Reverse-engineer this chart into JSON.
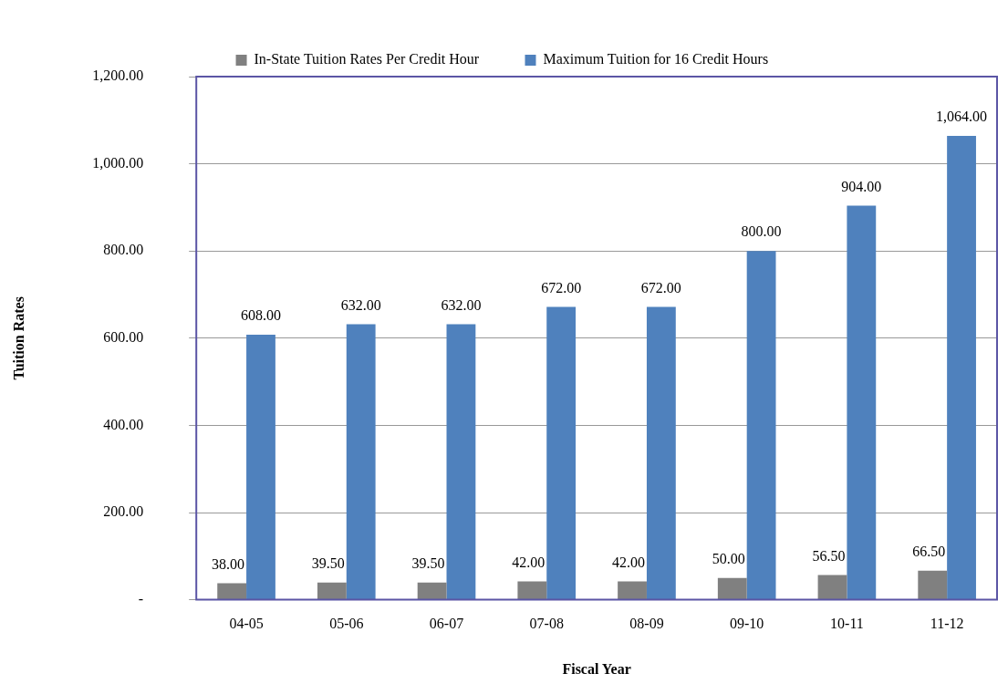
{
  "chart_data": {
    "type": "bar",
    "xlabel": "Fiscal Year",
    "ylabel": "Tuition Rates",
    "categories": [
      "04-05",
      "05-06",
      "06-07",
      "07-08",
      "08-09",
      "09-10",
      "10-11",
      "11-12"
    ],
    "series": [
      {
        "name": "In-State Tuition Rates Per Credit Hour",
        "color": "#808080",
        "values": [
          38,
          39.5,
          39.5,
          42,
          42,
          50,
          56.5,
          66.5
        ],
        "value_labels": [
          "38.00",
          "39.50",
          "39.50",
          "42.00",
          "42.00",
          "50.00",
          "56.50",
          "66.50"
        ]
      },
      {
        "name": "Maximum Tuition for 16 Credit Hours",
        "color": "#4f81bd",
        "values": [
          608,
          632,
          632,
          672,
          672,
          800,
          904,
          1064
        ],
        "value_labels": [
          "608.00",
          "632.00",
          "632.00",
          "672.00",
          "672.00",
          "800.00",
          "904.00",
          "1,064.00"
        ]
      }
    ],
    "ylim": [
      0,
      1200
    ],
    "yticks": [
      {
        "value": 0,
        "label": "-"
      },
      {
        "value": 200,
        "label": "200.00"
      },
      {
        "value": 400,
        "label": "400.00"
      },
      {
        "value": 600,
        "label": "600.00"
      },
      {
        "value": 800,
        "label": "800.00"
      },
      {
        "value": 1000,
        "label": "1,000.00"
      },
      {
        "value": 1200,
        "label": "1,200.00"
      }
    ],
    "grid": "y",
    "legend": "top"
  }
}
